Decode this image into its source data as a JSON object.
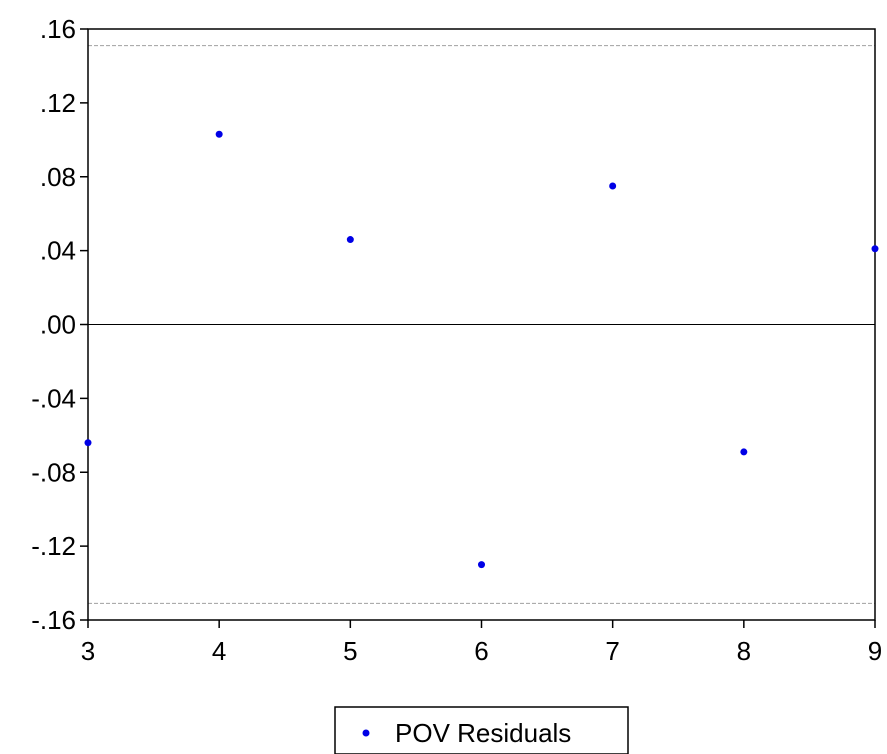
{
  "chart_data": {
    "type": "scatter",
    "title": "",
    "xlabel": "",
    "ylabel": "",
    "xlim": [
      3,
      9
    ],
    "ylim": [
      -0.16,
      0.16
    ],
    "x_ticks": [
      {
        "value": 3,
        "label": "3"
      },
      {
        "value": 4,
        "label": "4"
      },
      {
        "value": 5,
        "label": "5"
      },
      {
        "value": 6,
        "label": "6"
      },
      {
        "value": 7,
        "label": "7"
      },
      {
        "value": 8,
        "label": "8"
      },
      {
        "value": 9,
        "label": "9"
      }
    ],
    "y_ticks": [
      {
        "value": 0.16,
        "label": ".16"
      },
      {
        "value": 0.12,
        "label": ".12"
      },
      {
        "value": 0.08,
        "label": ".08"
      },
      {
        "value": 0.04,
        "label": ".04"
      },
      {
        "value": 0.0,
        "label": ".00"
      },
      {
        "value": -0.04,
        "label": "-.04"
      },
      {
        "value": -0.08,
        "label": "-.08"
      },
      {
        "value": -0.12,
        "label": "-.12"
      },
      {
        "value": -0.16,
        "label": "-.16"
      }
    ],
    "grid": false,
    "zero_line": 0.0,
    "reference_lines": [
      0.151,
      -0.151
    ],
    "series": [
      {
        "name": "POV Residuals",
        "color": "#0000e6",
        "points": [
          {
            "x": 3,
            "y": -0.064
          },
          {
            "x": 4,
            "y": 0.103
          },
          {
            "x": 5,
            "y": 0.046
          },
          {
            "x": 6,
            "y": -0.13
          },
          {
            "x": 7,
            "y": 0.075
          },
          {
            "x": 8,
            "y": -0.069
          },
          {
            "x": 9,
            "y": 0.041
          }
        ]
      }
    ],
    "legend": {
      "placement": "bottom-center",
      "label": "POV Residuals"
    },
    "colors": {
      "axis": "#000000",
      "reference_line": "#a0a0a0",
      "marker": "#0000e6"
    }
  }
}
